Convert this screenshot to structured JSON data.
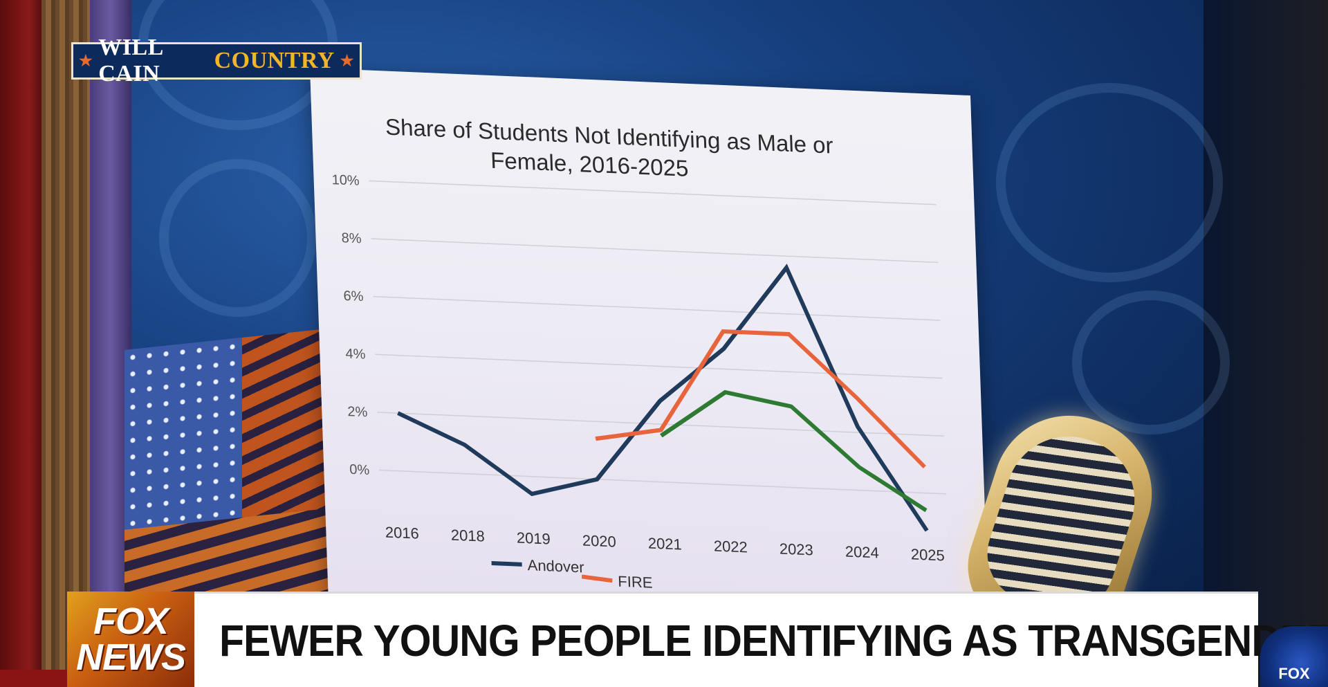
{
  "show_logo": {
    "word1": "WILL CAIN",
    "word2": "COUNTRY"
  },
  "lower_third": {
    "network_line1": "FOX",
    "network_line2": "NEWS",
    "headline": "FEWER YOUNG PEOPLE IDENTIFYING AS TRANSGENDER"
  },
  "network_bug": "FOX",
  "colors": {
    "andover": "#1f3a5a",
    "fire": "#e8643c",
    "third": "#2e7a32",
    "headline_text": "#111111",
    "logo_gold": "#f2b526"
  },
  "chart_data": {
    "type": "line",
    "title_line1": "Share of Students Not Identifying as Male or",
    "title_line2": "Female, 2016-2025",
    "xlabel": "",
    "ylabel": "",
    "categories": [
      "2016",
      "2018",
      "2019",
      "2020",
      "2021",
      "2022",
      "2023",
      "2024",
      "2025"
    ],
    "y_ticks": [
      "10%",
      "8%",
      "6%",
      "4%",
      "2%",
      "0%"
    ],
    "ylim": [
      -1,
      10
    ],
    "grid": true,
    "legend_position": "bottom",
    "series": [
      {
        "name": "Andover",
        "color": "#1f3a5a",
        "values": [
          2.0,
          1.0,
          -0.6,
          0.0,
          2.8,
          4.7,
          7.6,
          2.2,
          -1.3
        ]
      },
      {
        "name": "FIRE",
        "legend_text": "FIRE",
        "color": "#e8643c",
        "values": [
          null,
          null,
          null,
          1.4,
          1.8,
          5.3,
          5.3,
          3.2,
          0.9
        ]
      },
      {
        "name": "",
        "color": "#2e7a32",
        "values": [
          null,
          null,
          null,
          null,
          1.6,
          3.2,
          2.8,
          0.8,
          -0.6
        ]
      }
    ]
  }
}
